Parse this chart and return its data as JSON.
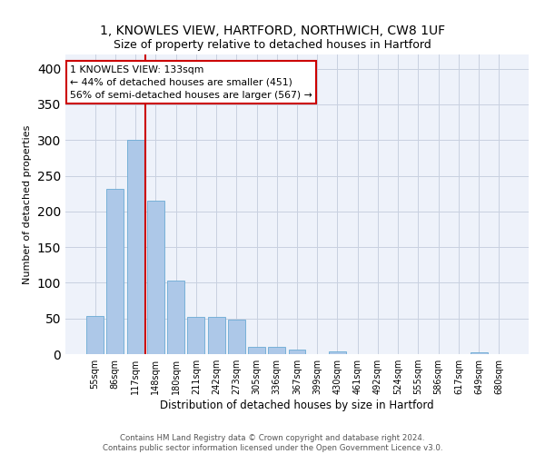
{
  "title": "1, KNOWLES VIEW, HARTFORD, NORTHWICH, CW8 1UF",
  "subtitle": "Size of property relative to detached houses in Hartford",
  "xlabel": "Distribution of detached houses by size in Hartford",
  "ylabel": "Number of detached properties",
  "categories": [
    "55sqm",
    "86sqm",
    "117sqm",
    "148sqm",
    "180sqm",
    "211sqm",
    "242sqm",
    "273sqm",
    "305sqm",
    "336sqm",
    "367sqm",
    "399sqm",
    "430sqm",
    "461sqm",
    "492sqm",
    "524sqm",
    "555sqm",
    "586sqm",
    "617sqm",
    "649sqm",
    "680sqm"
  ],
  "values": [
    53,
    232,
    300,
    215,
    103,
    52,
    52,
    49,
    10,
    10,
    6,
    0,
    4,
    0,
    0,
    0,
    0,
    0,
    0,
    3,
    0
  ],
  "bar_color": "#adc8e8",
  "bar_edge_color": "#6aaad4",
  "annotation_text": "1 KNOWLES VIEW: 133sqm\n← 44% of detached houses are smaller (451)\n56% of semi-detached houses are larger (567) →",
  "annotation_box_color": "#ffffff",
  "annotation_box_edge": "#cc0000",
  "vline_color": "#cc0000",
  "grid_color": "#c8d0e0",
  "background_color": "#eef2fa",
  "footer_text": "Contains HM Land Registry data © Crown copyright and database right 2024.\nContains public sector information licensed under the Open Government Licence v3.0.",
  "ylim": [
    0,
    420
  ],
  "yticks": [
    0,
    50,
    100,
    150,
    200,
    250,
    300,
    350,
    400
  ]
}
